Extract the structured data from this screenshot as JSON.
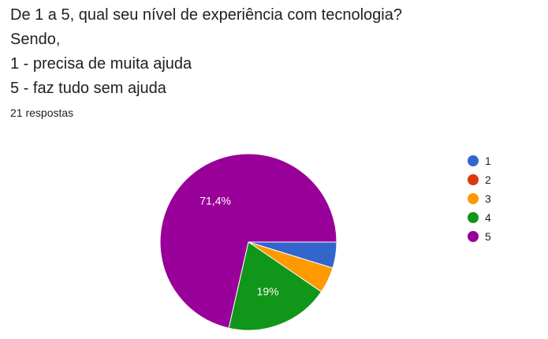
{
  "question": {
    "lines": [
      "De 1 a 5, qual seu nível de experiência com tecnologia?",
      "Sendo,",
      "1 - precisa de muita ajuda",
      "5 - faz tudo sem ajuda"
    ]
  },
  "responses_label": "21 respostas",
  "chart_data": {
    "type": "pie",
    "title": "",
    "total_responses": 21,
    "categories": [
      "1",
      "2",
      "3",
      "4",
      "5"
    ],
    "values": [
      1,
      0,
      1,
      4,
      15
    ],
    "colors": [
      "#3366cc",
      "#dc3912",
      "#ff9900",
      "#109618",
      "#990099"
    ],
    "data_labels": [
      "",
      "",
      "",
      "19%",
      "71,4%"
    ],
    "legend_position": "right",
    "start_angle": "3 o'clock, clockwise"
  }
}
